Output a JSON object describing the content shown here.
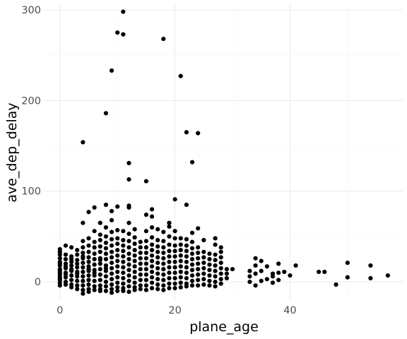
{
  "chart_data": {
    "type": "scatter",
    "title": "",
    "xlabel": "plane_age",
    "ylabel": "ave_dep_delay",
    "xlim": [
      -2.8,
      59.6
    ],
    "ylim": [
      -21,
      307
    ],
    "x_ticks": [
      0,
      20,
      40
    ],
    "y_ticks": [
      0,
      100,
      200,
      300
    ],
    "x_tick_labels": [
      "0",
      "20",
      "40"
    ],
    "y_tick_labels": [
      "0",
      "100",
      "200",
      "300"
    ],
    "grid": true,
    "legend": "none",
    "point_color": "#000000",
    "points": [
      [
        0,
        36
      ],
      [
        0,
        33
      ],
      [
        0,
        30
      ],
      [
        0,
        26
      ],
      [
        0,
        22
      ],
      [
        0,
        18
      ],
      [
        0,
        14
      ],
      [
        0,
        10
      ],
      [
        0,
        6
      ],
      [
        0,
        2
      ],
      [
        0,
        -1
      ],
      [
        0,
        -4
      ],
      [
        0,
        8
      ],
      [
        0,
        20
      ],
      [
        0,
        12
      ],
      [
        0,
        4
      ],
      [
        1,
        40
      ],
      [
        1,
        30
      ],
      [
        1,
        25
      ],
      [
        1,
        20
      ],
      [
        1,
        15
      ],
      [
        1,
        10
      ],
      [
        1,
        5
      ],
      [
        1,
        0
      ],
      [
        1,
        -3
      ],
      [
        1,
        17
      ],
      [
        1,
        8
      ],
      [
        2,
        38
      ],
      [
        2,
        28
      ],
      [
        2,
        22
      ],
      [
        2,
        18
      ],
      [
        2,
        12
      ],
      [
        2,
        7
      ],
      [
        2,
        2
      ],
      [
        2,
        -3
      ],
      [
        2,
        -6
      ],
      [
        2,
        14
      ],
      [
        2,
        25
      ],
      [
        3,
        30
      ],
      [
        3,
        24
      ],
      [
        3,
        20
      ],
      [
        3,
        16
      ],
      [
        3,
        11
      ],
      [
        3,
        6
      ],
      [
        3,
        1
      ],
      [
        3,
        -4
      ],
      [
        3,
        -8
      ],
      [
        3,
        9
      ],
      [
        3,
        35
      ],
      [
        4,
        154
      ],
      [
        4,
        65
      ],
      [
        4,
        45
      ],
      [
        4,
        38
      ],
      [
        4,
        32
      ],
      [
        4,
        26
      ],
      [
        4,
        21
      ],
      [
        4,
        16
      ],
      [
        4,
        11
      ],
      [
        4,
        6
      ],
      [
        4,
        1
      ],
      [
        4,
        -4
      ],
      [
        4,
        -9
      ],
      [
        4,
        -13
      ],
      [
        4,
        28
      ],
      [
        5,
        77
      ],
      [
        5,
        48
      ],
      [
        5,
        40
      ],
      [
        5,
        33
      ],
      [
        5,
        27
      ],
      [
        5,
        22
      ],
      [
        5,
        17
      ],
      [
        5,
        12
      ],
      [
        5,
        7
      ],
      [
        5,
        2
      ],
      [
        5,
        -3
      ],
      [
        5,
        -8
      ],
      [
        5,
        -11
      ],
      [
        5,
        14
      ],
      [
        6,
        82
      ],
      [
        6,
        56
      ],
      [
        6,
        44
      ],
      [
        6,
        38
      ],
      [
        6,
        31
      ],
      [
        6,
        25
      ],
      [
        6,
        19
      ],
      [
        6,
        13
      ],
      [
        6,
        7
      ],
      [
        6,
        1
      ],
      [
        6,
        -5
      ],
      [
        6,
        -9
      ],
      [
        6,
        10
      ],
      [
        7,
        65
      ],
      [
        7,
        52
      ],
      [
        7,
        46
      ],
      [
        7,
        39
      ],
      [
        7,
        33
      ],
      [
        7,
        26
      ],
      [
        7,
        20
      ],
      [
        7,
        14
      ],
      [
        7,
        8
      ],
      [
        7,
        2
      ],
      [
        7,
        -4
      ],
      [
        7,
        -8
      ],
      [
        7,
        -10
      ],
      [
        7,
        24
      ],
      [
        8,
        186
      ],
      [
        8,
        85
      ],
      [
        8,
        60
      ],
      [
        8,
        50
      ],
      [
        8,
        43
      ],
      [
        8,
        37
      ],
      [
        8,
        31
      ],
      [
        8,
        25
      ],
      [
        8,
        18
      ],
      [
        8,
        12
      ],
      [
        8,
        6
      ],
      [
        8,
        0
      ],
      [
        8,
        -5
      ],
      [
        8,
        -10
      ],
      [
        8,
        15
      ],
      [
        9,
        233
      ],
      [
        9,
        78
      ],
      [
        9,
        68
      ],
      [
        9,
        55
      ],
      [
        9,
        47
      ],
      [
        9,
        40
      ],
      [
        9,
        33
      ],
      [
        9,
        27
      ],
      [
        9,
        21
      ],
      [
        9,
        15
      ],
      [
        9,
        9
      ],
      [
        9,
        3
      ],
      [
        9,
        -3
      ],
      [
        9,
        -8
      ],
      [
        9,
        -12
      ],
      [
        10,
        275
      ],
      [
        10,
        83
      ],
      [
        10,
        57
      ],
      [
        10,
        48
      ],
      [
        10,
        42
      ],
      [
        10,
        35
      ],
      [
        10,
        29
      ],
      [
        10,
        23
      ],
      [
        10,
        17
      ],
      [
        10,
        11
      ],
      [
        10,
        5
      ],
      [
        10,
        -1
      ],
      [
        10,
        -6
      ],
      [
        10,
        -10
      ],
      [
        11,
        298
      ],
      [
        11,
        273
      ],
      [
        11,
        56
      ],
      [
        11,
        46
      ],
      [
        11,
        40
      ],
      [
        11,
        34
      ],
      [
        11,
        28
      ],
      [
        11,
        22
      ],
      [
        11,
        16
      ],
      [
        11,
        10
      ],
      [
        11,
        4
      ],
      [
        11,
        -2
      ],
      [
        11,
        -7
      ],
      [
        11,
        -10
      ],
      [
        12,
        131
      ],
      [
        12,
        113
      ],
      [
        12,
        84
      ],
      [
        12,
        82
      ],
      [
        12,
        65
      ],
      [
        12,
        53
      ],
      [
        12,
        45
      ],
      [
        12,
        38
      ],
      [
        12,
        31
      ],
      [
        12,
        25
      ],
      [
        12,
        19
      ],
      [
        12,
        13
      ],
      [
        12,
        7
      ],
      [
        12,
        1
      ],
      [
        12,
        -5
      ],
      [
        12,
        -11
      ],
      [
        13,
        58
      ],
      [
        13,
        49
      ],
      [
        13,
        42
      ],
      [
        13,
        35
      ],
      [
        13,
        29
      ],
      [
        13,
        23
      ],
      [
        13,
        17
      ],
      [
        13,
        11
      ],
      [
        13,
        5
      ],
      [
        13,
        -1
      ],
      [
        13,
        -6
      ],
      [
        13,
        -9
      ],
      [
        14,
        44
      ],
      [
        14,
        38
      ],
      [
        14,
        32
      ],
      [
        14,
        26
      ],
      [
        14,
        20
      ],
      [
        14,
        14
      ],
      [
        14,
        8
      ],
      [
        14,
        2
      ],
      [
        14,
        -4
      ],
      [
        14,
        -8
      ],
      [
        15,
        111
      ],
      [
        15,
        74
      ],
      [
        15,
        56
      ],
      [
        15,
        45
      ],
      [
        15,
        38
      ],
      [
        15,
        32
      ],
      [
        15,
        26
      ],
      [
        15,
        20
      ],
      [
        15,
        14
      ],
      [
        15,
        8
      ],
      [
        15,
        2
      ],
      [
        15,
        -4
      ],
      [
        15,
        -9
      ],
      [
        16,
        80
      ],
      [
        16,
        72
      ],
      [
        16,
        60
      ],
      [
        16,
        49
      ],
      [
        16,
        41
      ],
      [
        16,
        35
      ],
      [
        16,
        29
      ],
      [
        16,
        23
      ],
      [
        16,
        17
      ],
      [
        16,
        11
      ],
      [
        16,
        5
      ],
      [
        16,
        -1
      ],
      [
        16,
        -7
      ],
      [
        17,
        58
      ],
      [
        17,
        46
      ],
      [
        17,
        39
      ],
      [
        17,
        33
      ],
      [
        17,
        27
      ],
      [
        17,
        21
      ],
      [
        17,
        15
      ],
      [
        17,
        9
      ],
      [
        17,
        3
      ],
      [
        17,
        -3
      ],
      [
        17,
        -8
      ],
      [
        18,
        268
      ],
      [
        18,
        55
      ],
      [
        18,
        45
      ],
      [
        18,
        38
      ],
      [
        18,
        32
      ],
      [
        18,
        26
      ],
      [
        18,
        20
      ],
      [
        18,
        14
      ],
      [
        18,
        8
      ],
      [
        18,
        2
      ],
      [
        18,
        -4
      ],
      [
        18,
        -9
      ],
      [
        19,
        65
      ],
      [
        19,
        61
      ],
      [
        19,
        50
      ],
      [
        19,
        41
      ],
      [
        19,
        34
      ],
      [
        19,
        28
      ],
      [
        19,
        22
      ],
      [
        19,
        16
      ],
      [
        19,
        10
      ],
      [
        19,
        4
      ],
      [
        19,
        -2
      ],
      [
        19,
        -7
      ],
      [
        20,
        91
      ],
      [
        20,
        56
      ],
      [
        20,
        48
      ],
      [
        20,
        40
      ],
      [
        20,
        34
      ],
      [
        20,
        28
      ],
      [
        20,
        22
      ],
      [
        20,
        16
      ],
      [
        20,
        10
      ],
      [
        20,
        4
      ],
      [
        20,
        -2
      ],
      [
        20,
        -7
      ],
      [
        21,
        227
      ],
      [
        21,
        48
      ],
      [
        21,
        41
      ],
      [
        21,
        35
      ],
      [
        21,
        29
      ],
      [
        21,
        23
      ],
      [
        21,
        17
      ],
      [
        21,
        11
      ],
      [
        21,
        5
      ],
      [
        21,
        -1
      ],
      [
        21,
        -6
      ],
      [
        22,
        165
      ],
      [
        22,
        85
      ],
      [
        22,
        47
      ],
      [
        22,
        40
      ],
      [
        22,
        34
      ],
      [
        22,
        28
      ],
      [
        22,
        22
      ],
      [
        22,
        16
      ],
      [
        22,
        10
      ],
      [
        22,
        4
      ],
      [
        22,
        -2
      ],
      [
        22,
        -5
      ],
      [
        23,
        132
      ],
      [
        23,
        54
      ],
      [
        23,
        44
      ],
      [
        23,
        37
      ],
      [
        23,
        31
      ],
      [
        23,
        25
      ],
      [
        23,
        19
      ],
      [
        23,
        13
      ],
      [
        23,
        7
      ],
      [
        23,
        1
      ],
      [
        23,
        -4
      ],
      [
        24,
        164
      ],
      [
        24,
        59
      ],
      [
        24,
        38
      ],
      [
        24,
        32
      ],
      [
        24,
        26
      ],
      [
        24,
        20
      ],
      [
        24,
        14
      ],
      [
        24,
        8
      ],
      [
        24,
        2
      ],
      [
        24,
        -4
      ],
      [
        25,
        46
      ],
      [
        25,
        33
      ],
      [
        25,
        27
      ],
      [
        25,
        21
      ],
      [
        25,
        15
      ],
      [
        25,
        9
      ],
      [
        25,
        3
      ],
      [
        25,
        -3
      ],
      [
        26,
        31
      ],
      [
        26,
        25
      ],
      [
        26,
        19
      ],
      [
        26,
        13
      ],
      [
        26,
        7
      ],
      [
        26,
        1
      ],
      [
        26,
        -4
      ],
      [
        27,
        48
      ],
      [
        27,
        41
      ],
      [
        27,
        30
      ],
      [
        27,
        24
      ],
      [
        27,
        18
      ],
      [
        27,
        12
      ],
      [
        27,
        6
      ],
      [
        27,
        0
      ],
      [
        27,
        -5
      ],
      [
        28,
        38
      ],
      [
        28,
        33
      ],
      [
        28,
        27
      ],
      [
        28,
        21
      ],
      [
        28,
        15
      ],
      [
        28,
        9
      ],
      [
        28,
        3
      ],
      [
        28,
        -2
      ],
      [
        29,
        14
      ],
      [
        29,
        9
      ],
      [
        29,
        4
      ],
      [
        30,
        14
      ],
      [
        33,
        12
      ],
      [
        33,
        6
      ],
      [
        33,
        0
      ],
      [
        34,
        26
      ],
      [
        34,
        18
      ],
      [
        34,
        9
      ],
      [
        34,
        -4
      ],
      [
        35,
        23
      ],
      [
        35,
        12
      ],
      [
        35,
        1
      ],
      [
        36,
        17
      ],
      [
        36,
        3
      ],
      [
        37,
        9
      ],
      [
        37,
        6
      ],
      [
        37,
        -1
      ],
      [
        38,
        20
      ],
      [
        38,
        10
      ],
      [
        38,
        2
      ],
      [
        39,
        11
      ],
      [
        40,
        7
      ],
      [
        41,
        18
      ],
      [
        45,
        11
      ],
      [
        46,
        11
      ],
      [
        48,
        -3
      ],
      [
        50,
        21
      ],
      [
        50,
        5
      ],
      [
        54,
        18
      ],
      [
        54,
        4
      ],
      [
        57,
        7
      ]
    ]
  }
}
